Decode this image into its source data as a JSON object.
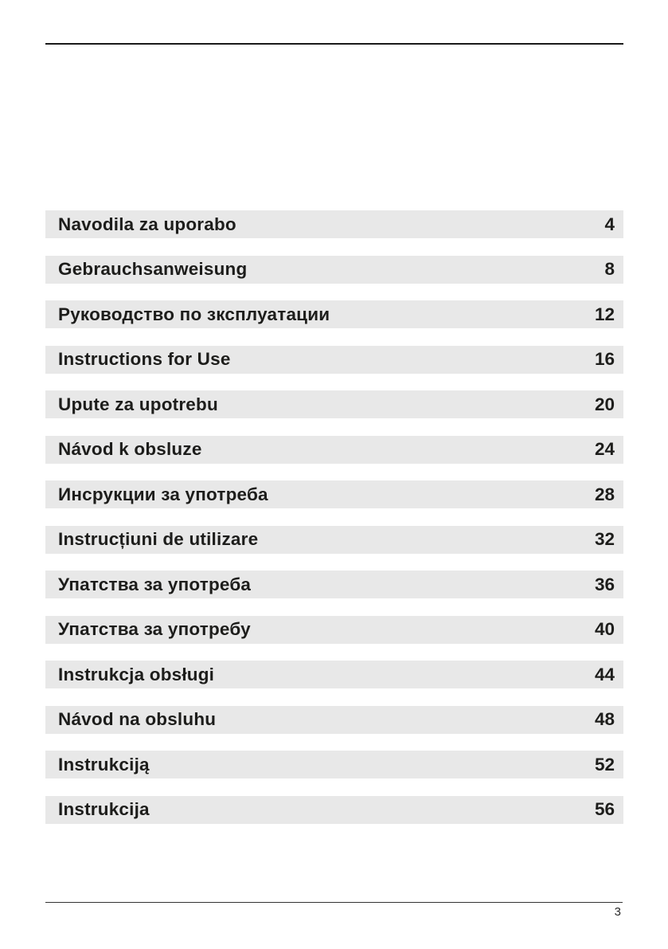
{
  "colors": {
    "row_background": "#e8e8e8",
    "text": "#1d1d1b",
    "top_rule": "#1a1a1a",
    "bottom_rule": "#333333"
  },
  "toc": {
    "entries": [
      {
        "label": "Navodila za uporabo",
        "page": "4"
      },
      {
        "label": "Gebrauchsanweisung",
        "page": "8"
      },
      {
        "label": "Руководство по зксплуатации",
        "page": "12"
      },
      {
        "label": "Instructions for Use",
        "page": "16"
      },
      {
        "label": "Upute za upotrebu",
        "page": "20"
      },
      {
        "label": "Návod k obsluze",
        "page": "24"
      },
      {
        "label": "Инсрукции за употреба",
        "page": "28"
      },
      {
        "label": "Instrucțiuni de utilizare",
        "page": "32"
      },
      {
        "label": "Упатства за употреба",
        "page": "36"
      },
      {
        "label": "Упатства за употребу",
        "page": "40"
      },
      {
        "label": "Instrukcja obsługi",
        "page": "44"
      },
      {
        "label": "Návod na obsluhu",
        "page": "48"
      },
      {
        "label": "Instrukciją",
        "page": "52"
      },
      {
        "label": "Instrukcija",
        "page": "56"
      }
    ]
  },
  "footer": {
    "page_number": "3"
  }
}
